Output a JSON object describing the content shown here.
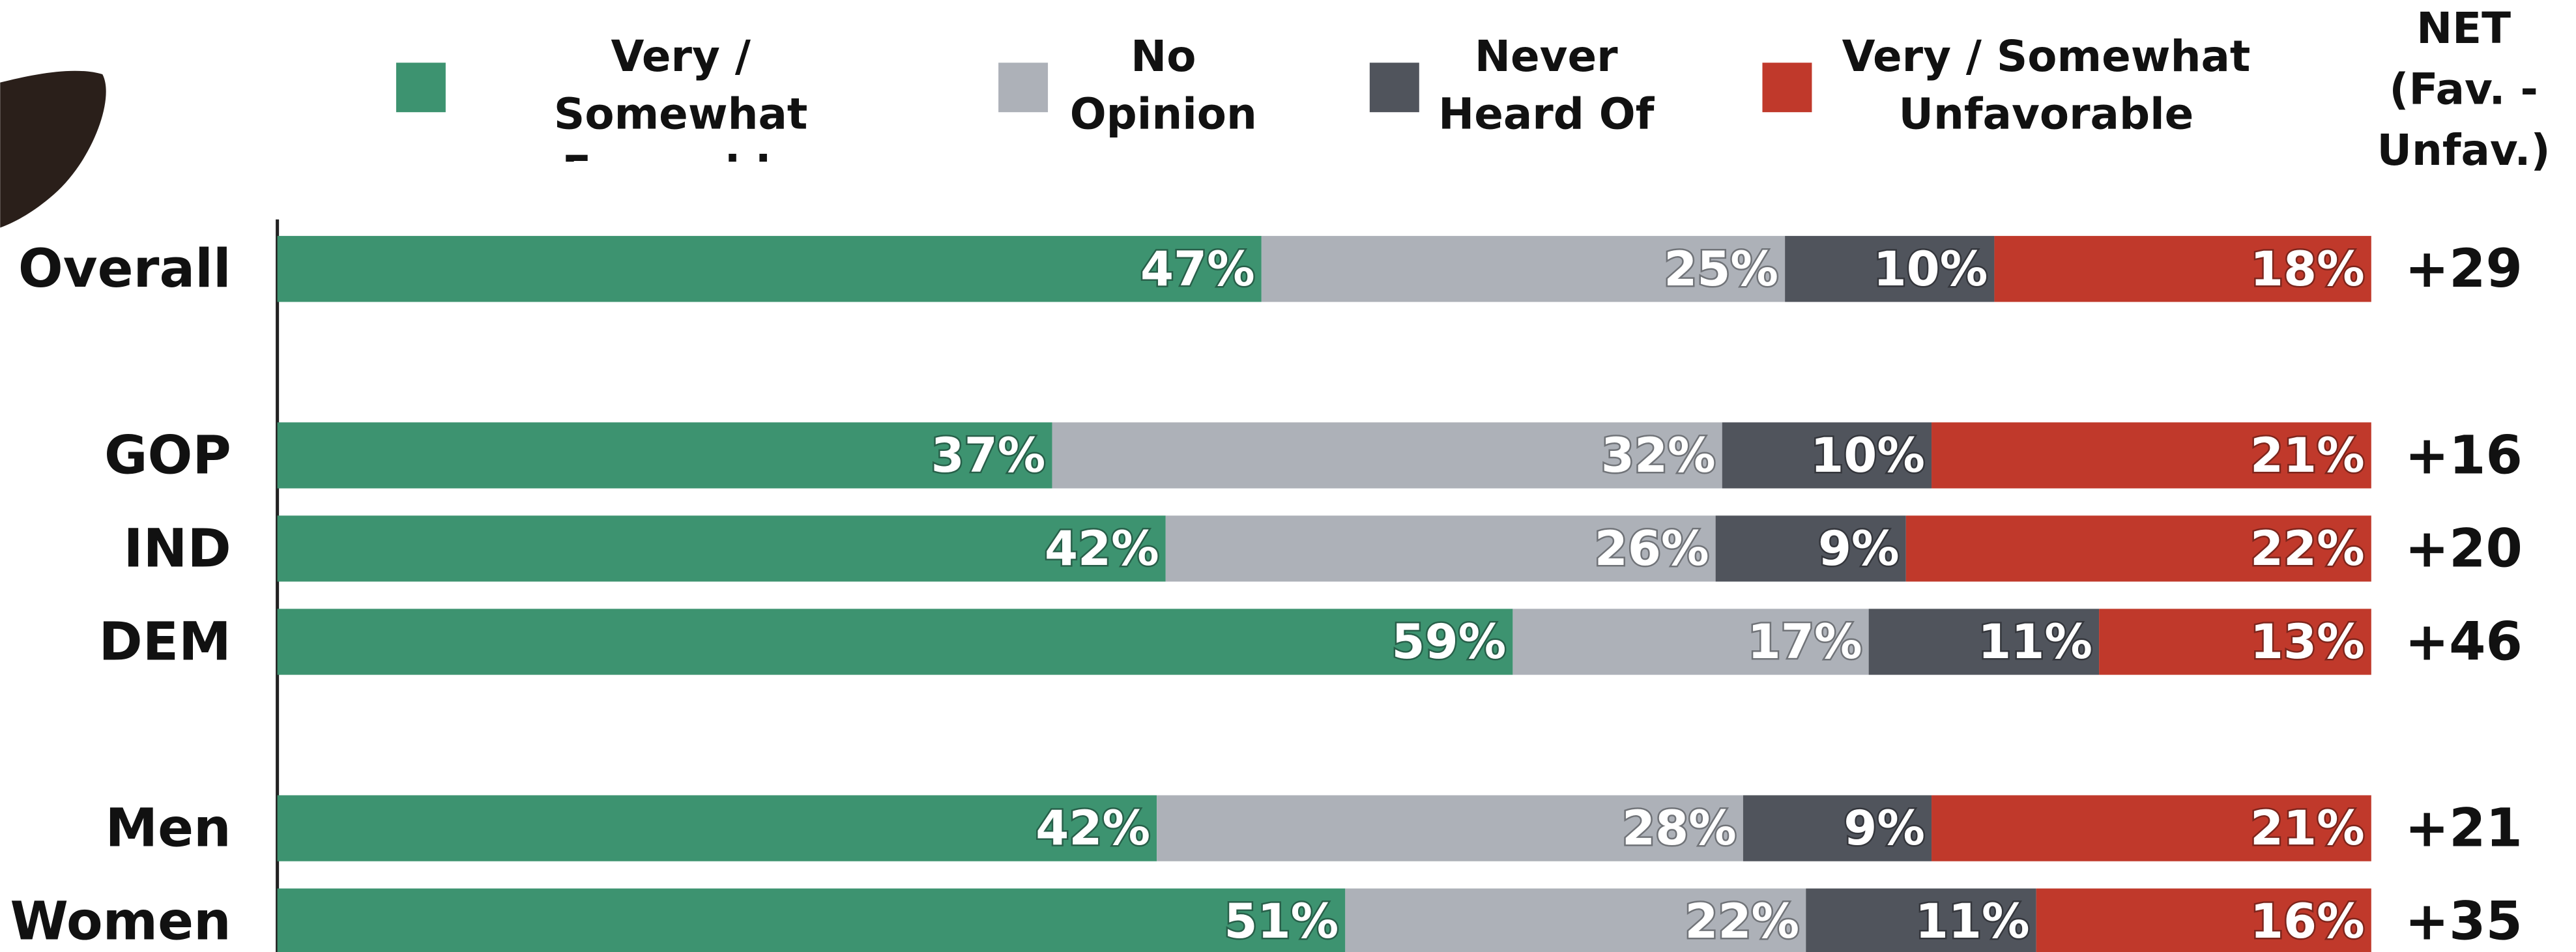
{
  "chart_data": {
    "type": "stacked-bar",
    "orientation": "horizontal",
    "categories": [
      "Overall",
      null,
      "GOP",
      "IND",
      "DEM",
      null,
      "Men",
      "Women"
    ],
    "series": [
      {
        "name": "Very / Somewhat\nFavorable",
        "color": "#3d9370",
        "values": [
          47,
          null,
          37,
          42,
          59,
          null,
          42,
          51
        ],
        "value_labels": [
          "47%",
          null,
          "37%",
          "42%",
          "59%",
          null,
          "42%",
          "51%"
        ]
      },
      {
        "name": "No\nOpinion",
        "color": "#adb1b8",
        "values": [
          25,
          null,
          32,
          26,
          17,
          null,
          28,
          22
        ],
        "value_labels": [
          "25%",
          null,
          "32%",
          "26%",
          "17%",
          null,
          "28%",
          "22%"
        ]
      },
      {
        "name": "Never\nHeard Of",
        "color": "#50545c",
        "values": [
          10,
          null,
          10,
          9,
          11,
          null,
          9,
          11
        ],
        "value_labels": [
          "10%",
          null,
          "10%",
          "9%",
          "11%",
          null,
          "9%",
          "11%"
        ]
      },
      {
        "name": "Very / Somewhat\nUnfavorable",
        "color": "#c0392b",
        "values": [
          18,
          null,
          21,
          22,
          13,
          null,
          21,
          16
        ],
        "value_labels": [
          "18%",
          null,
          "21%",
          "22%",
          "13%",
          null,
          "21%",
          "16%"
        ]
      }
    ],
    "net": {
      "title": "NET\n(Fav. -\nUnfav.)",
      "values": [
        29,
        null,
        16,
        20,
        46,
        null,
        21,
        35
      ],
      "value_labels": [
        "+29",
        null,
        "+16",
        "+20",
        "+46",
        null,
        "+21",
        "+35"
      ]
    }
  }
}
